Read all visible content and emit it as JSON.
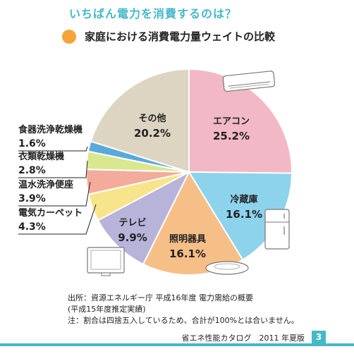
{
  "header": {
    "title": "いちばん電力を消費するのは？",
    "subtitle": "家庭における消費電力量ウェイトの比較"
  },
  "colors": {
    "accent": "#45b8c9",
    "bullet": "#f5a437"
  },
  "chart_data": {
    "type": "pie",
    "title": "家庭における消費電力量ウェイトの比較",
    "slices": [
      {
        "name": "エアコン",
        "value": 25.2,
        "label": "25.2%",
        "color": "#f2b8c6"
      },
      {
        "name": "冷蔵庫",
        "value": 16.1,
        "label": "16.1%",
        "color": "#8dd3ec"
      },
      {
        "name": "照明器具",
        "value": 16.1,
        "label": "16.1%",
        "color": "#f7bf88"
      },
      {
        "name": "テレビ",
        "value": 9.9,
        "label": "9.9%",
        "color": "#b7b3d9"
      },
      {
        "name": "電気カーペット",
        "value": 4.3,
        "label": "4.3%",
        "color": "#f8e48a"
      },
      {
        "name": "温水洗浄便座",
        "value": 3.9,
        "label": "3.9%",
        "color": "#f3ab9c"
      },
      {
        "name": "衣類乾燥機",
        "value": 2.8,
        "label": "2.8%",
        "color": "#d9e88e"
      },
      {
        "name": "食器洗浄乾燥機",
        "value": 1.6,
        "label": "1.6%",
        "color": "#5aa9dd"
      },
      {
        "name": "その他",
        "value": 20.2,
        "label": "20.2%",
        "color": "#ddd5c2"
      }
    ]
  },
  "source": {
    "line1": "出所：資源エネルギー庁 平成16年度 電力需給の概要",
    "line2": "(平成15年度推定実績)",
    "line3": "注：割合は四捨五入しているため、合計が100%とは合いません。"
  },
  "footer": {
    "catalog": "省エネ性能カタログ　2011 年夏版",
    "page": "3"
  }
}
